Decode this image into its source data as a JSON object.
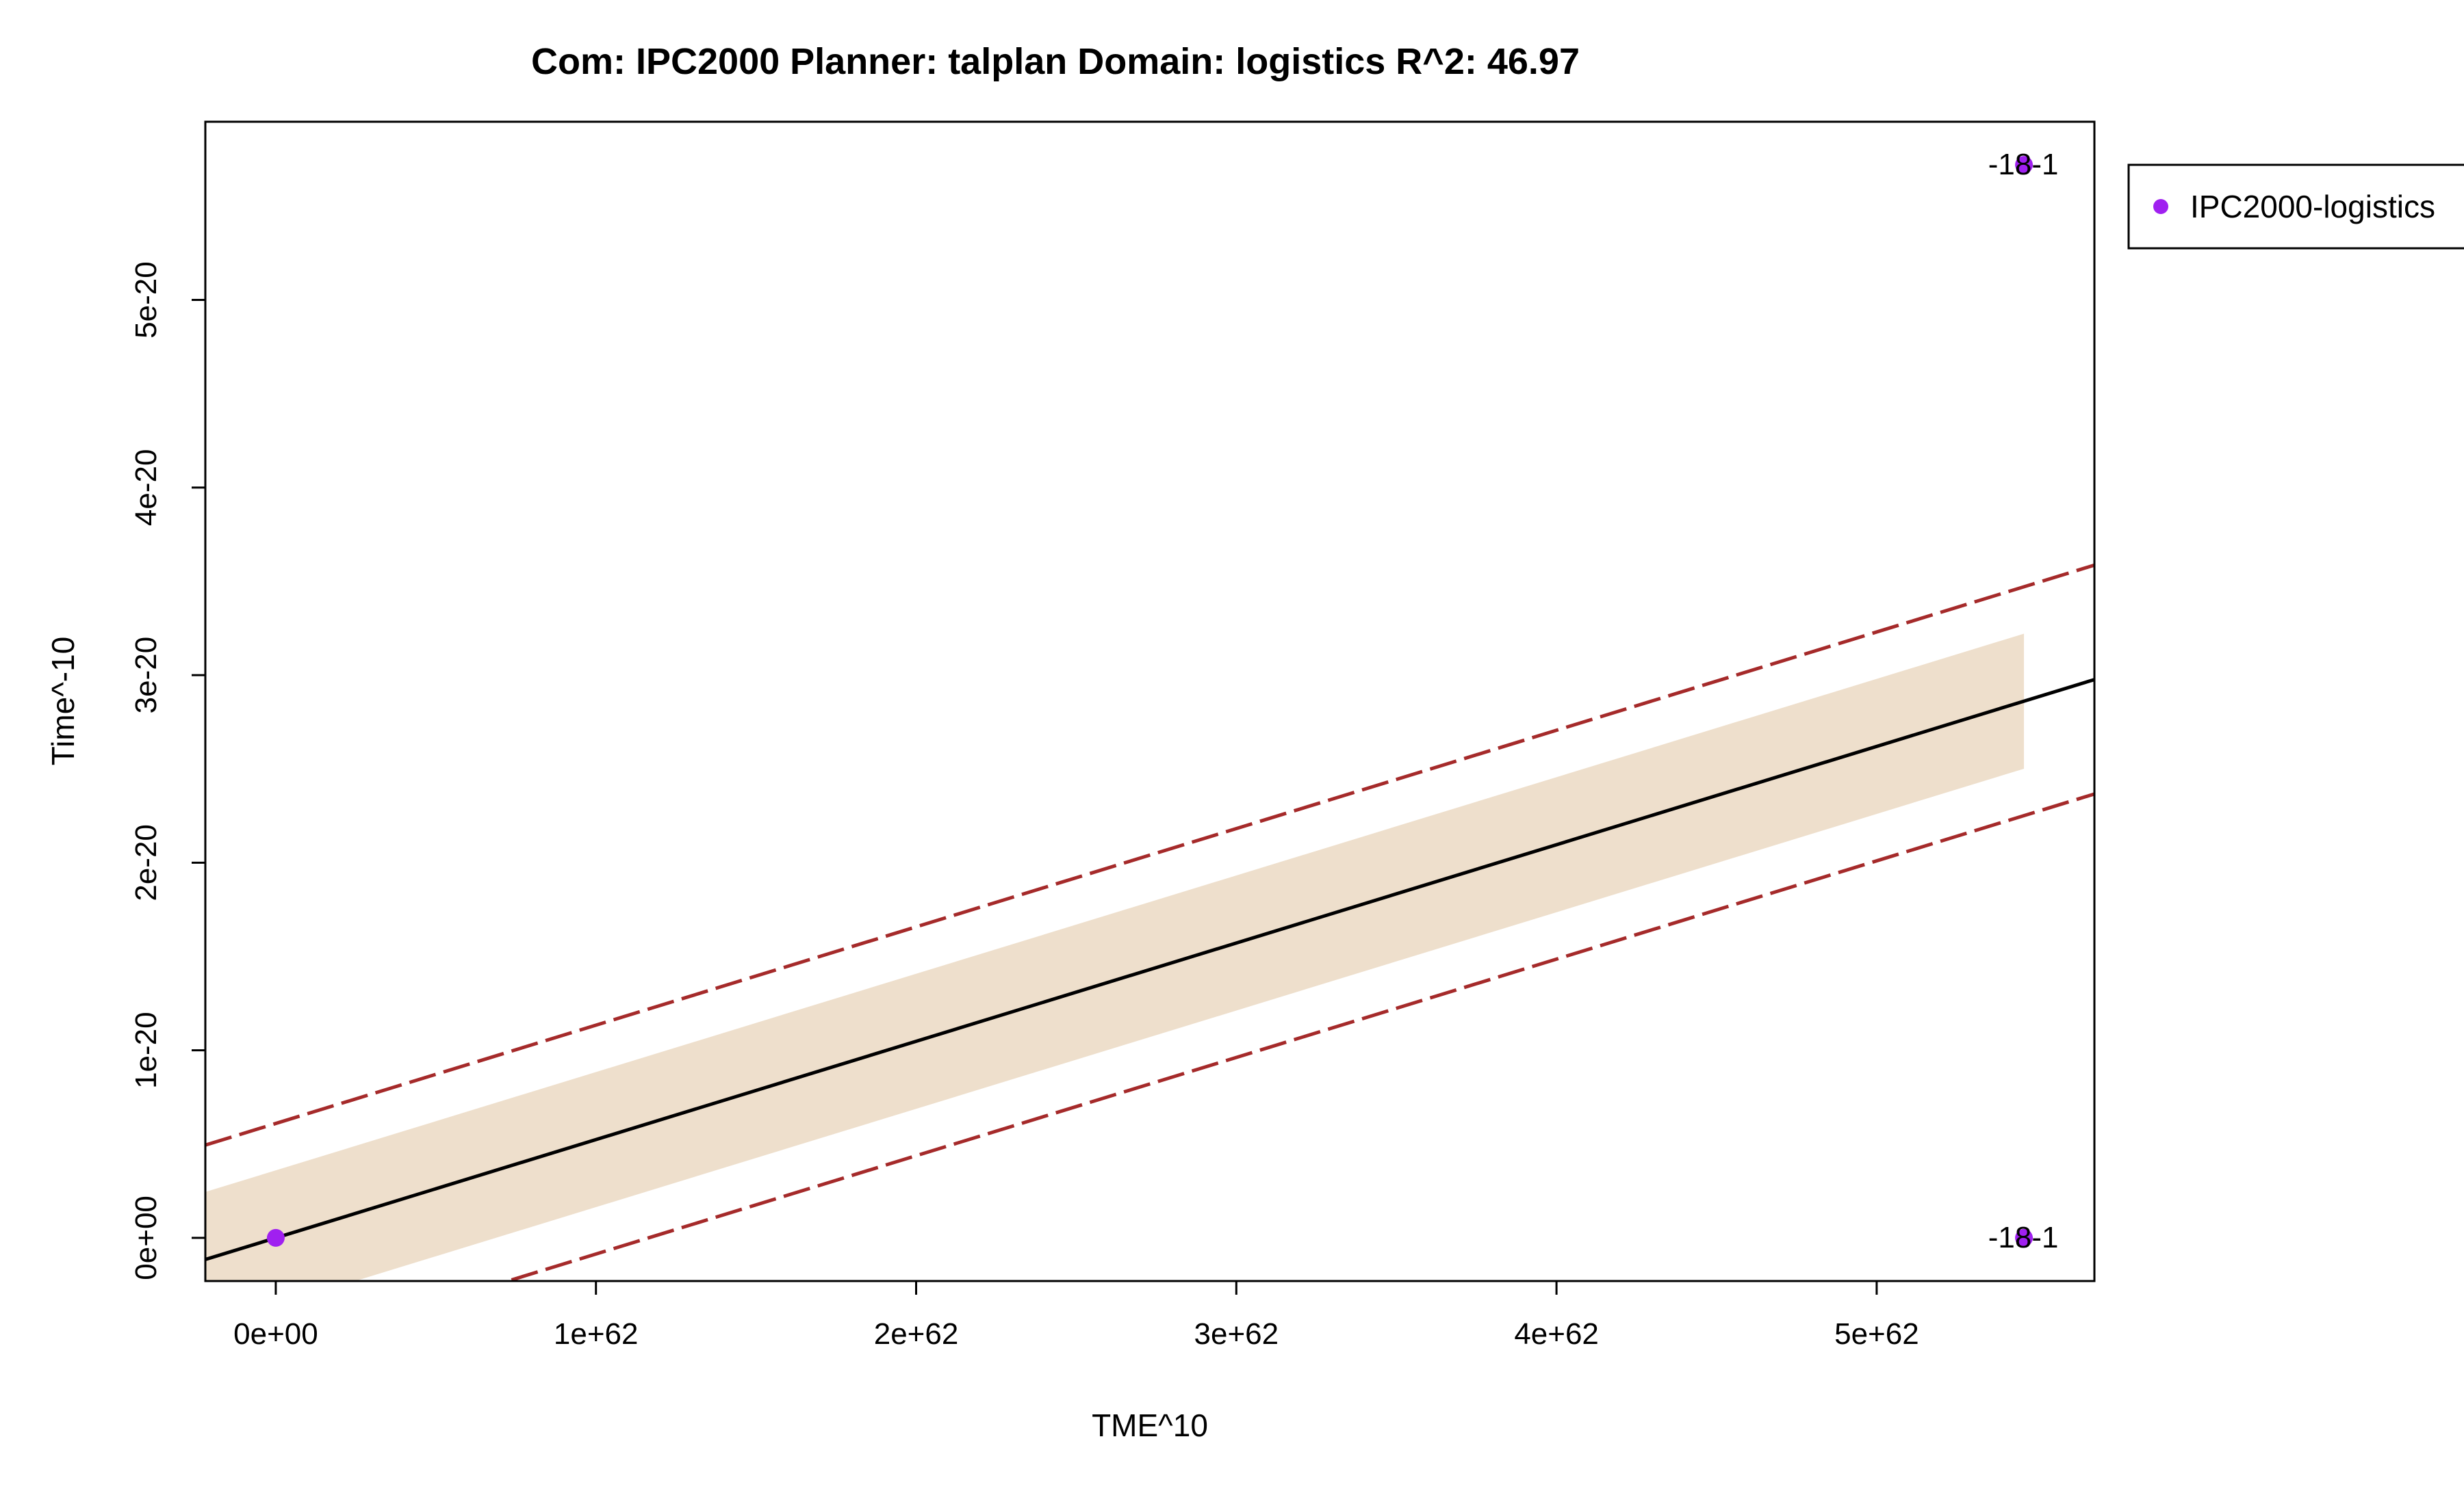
{
  "chart_data": {
    "type": "scatter",
    "title": "Com: IPC2000 Planner: talplan Domain: logistics R^2: 46.97",
    "xlabel": "TME^10",
    "ylabel": "Time^-10",
    "xlim": [
      -2.2e+61,
      5.68e+62
    ],
    "ylim": [
      -2.3e-21,
      5.95e-20
    ],
    "x_ticks": [
      {
        "value": 0,
        "label": "0e+00"
      },
      {
        "value": 1e+62,
        "label": "1e+62"
      },
      {
        "value": 2e+62,
        "label": "2e+62"
      },
      {
        "value": 3e+62,
        "label": "3e+62"
      },
      {
        "value": 4e+62,
        "label": "4e+62"
      },
      {
        "value": 5e+62,
        "label": "5e+62"
      }
    ],
    "y_ticks": [
      {
        "value": 0,
        "label": "0e+00"
      },
      {
        "value": 1e-20,
        "label": "1e-20"
      },
      {
        "value": 2e-20,
        "label": "2e-20"
      },
      {
        "value": 3e-20,
        "label": "3e-20"
      },
      {
        "value": 4e-20,
        "label": "4e-20"
      },
      {
        "value": 5e-20,
        "label": "5e-20"
      }
    ],
    "series": [
      {
        "name": "IPC2000-logistics",
        "color": "#a020f0",
        "points": [
          {
            "x": 0,
            "y": 0
          },
          {
            "x": 5.46e+62,
            "y": 5.72e-20,
            "label": "-18-1"
          },
          {
            "x": 5.46e+62,
            "y": 0,
            "label": "-18-1"
          }
        ]
      }
    ],
    "fit_line": {
      "intercept": 0,
      "slope": 5.24e-83,
      "color": "#000000"
    },
    "confidence_band": {
      "x_range": [
        -2.2e+61,
        5.46e+62
      ],
      "offset": 3.6e-21,
      "fill": "#eedfcc"
    },
    "prediction_lines": {
      "offset": 6.1e-21,
      "color": "#a52a2a",
      "style": "dashed"
    },
    "legend": {
      "position": "top-right-outside",
      "entries": [
        "IPC2000-logistics"
      ]
    },
    "grid": false
  }
}
